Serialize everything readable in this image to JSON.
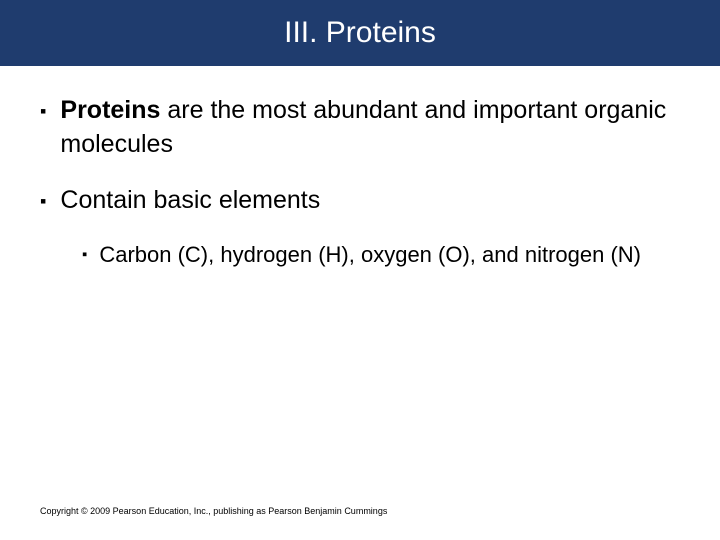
{
  "title": "III. Proteins",
  "bullets": {
    "b1_bold": "Proteins",
    "b1_rest": " are the most abundant and important organic molecules",
    "b2": "Contain basic elements",
    "b2_sub": "Carbon (C), hydrogen (H), oxygen (O), and nitrogen (N)"
  },
  "copyright": "Copyright © 2009 Pearson Education, Inc., publishing as Pearson Benjamin Cummings",
  "colors": {
    "title_bg": "#1f3c6e",
    "title_text": "#ffffff",
    "body_text": "#000000",
    "background": "#ffffff"
  },
  "typography": {
    "title_fontsize": 30,
    "l1_fontsize": 25,
    "l2_fontsize": 22,
    "copyright_fontsize": 9
  }
}
